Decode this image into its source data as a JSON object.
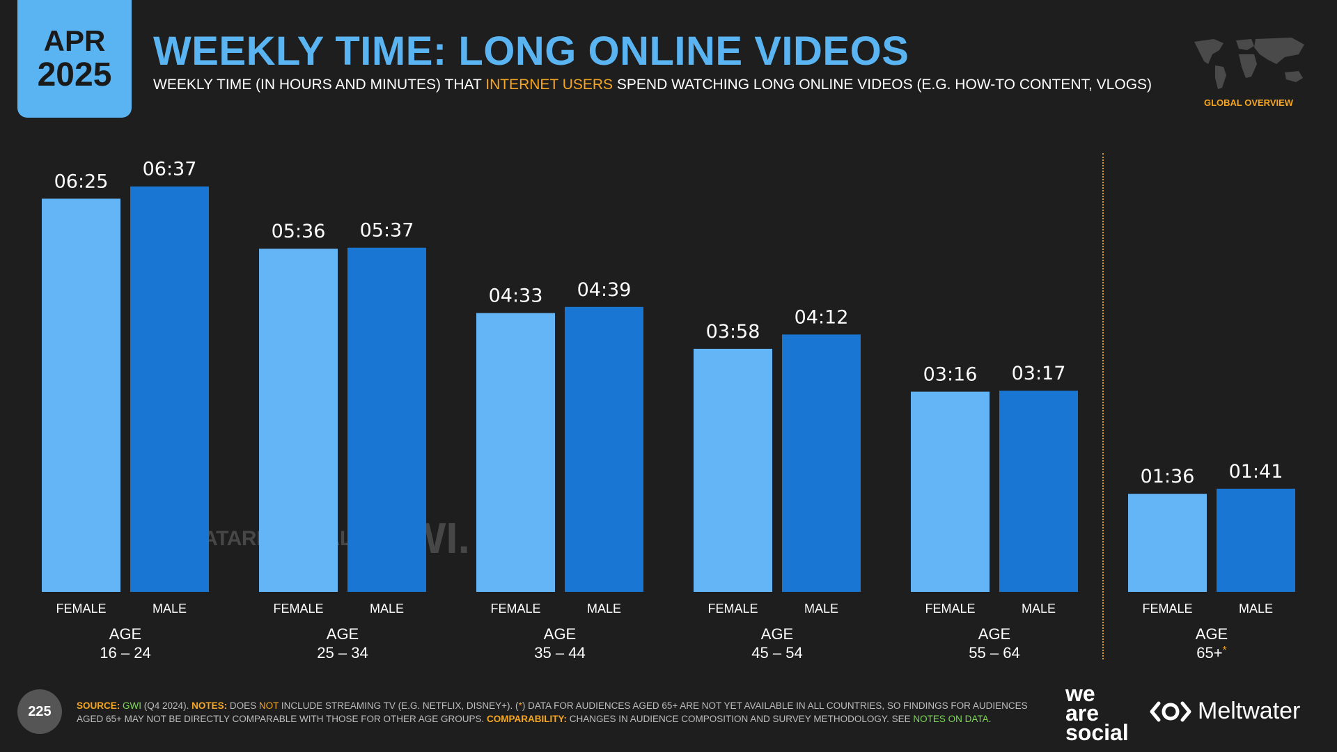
{
  "header": {
    "badge_month": "APR",
    "badge_year": "2025",
    "title": "WEEKLY TIME: LONG ONLINE VIDEOS",
    "subtitle_before": "WEEKLY TIME (IN HOURS AND MINUTES) THAT ",
    "subtitle_highlight": "INTERNET USERS",
    "subtitle_after": " SPEND WATCHING LONG ONLINE VIDEOS (E.G. HOW-TO CONTENT, VLOGS)",
    "global_overview": "GLOBAL OVERVIEW"
  },
  "watermark": {
    "datareportal": "DATAREPORTAL",
    "gwi": "GWI."
  },
  "colors": {
    "female": "#64b5f6",
    "male": "#1976d2",
    "accent": "#f5a623",
    "title": "#5ab4f2"
  },
  "chart_data": {
    "type": "bar",
    "unit": "hh:mm per week",
    "series": [
      {
        "name": "FEMALE",
        "labels": [
          "06:25",
          "05:36",
          "04:33",
          "03:58",
          "03:16",
          "01:36"
        ]
      },
      {
        "name": "MALE",
        "labels": [
          "06:37",
          "05:37",
          "04:39",
          "04:12",
          "03:17",
          "01:41"
        ]
      }
    ],
    "groups": [
      {
        "top": "AGE",
        "bottom": "16 – 24",
        "star": ""
      },
      {
        "top": "AGE",
        "bottom": "25 – 34",
        "star": ""
      },
      {
        "top": "AGE",
        "bottom": "35 – 44",
        "star": ""
      },
      {
        "top": "AGE",
        "bottom": "45 – 54",
        "star": ""
      },
      {
        "top": "AGE",
        "bottom": "55 – 64",
        "star": ""
      },
      {
        "top": "AGE",
        "bottom": "65+",
        "star": "*"
      }
    ],
    "ylim": [
      0,
      7.5
    ]
  },
  "footer": {
    "page_number": "225",
    "source_label": "SOURCE:",
    "source_name": "GWI",
    "source_period": " (Q4 2024). ",
    "notes_label": "NOTES:",
    "notes_1": " DOES ",
    "notes_not": "NOT",
    "notes_2": " INCLUDE STREAMING TV (E.G. NETFLIX, DISNEY+). (",
    "notes_star": "*",
    "notes_3": ") DATA FOR AUDIENCES AGED 65+ ARE NOT YET AVAILABLE IN ALL COUNTRIES, SO FINDINGS FOR AUDIENCES AGED 65+ MAY NOT BE DIRECTLY COMPARABLE WITH THOSE FOR OTHER AGE GROUPS. ",
    "comparability_label": "COMPARABILITY:",
    "comparability_text": " CHANGES IN AUDIENCE COMPOSITION AND SURVEY METHODOLOGY. SEE ",
    "notes_on_data": "NOTES ON DATA",
    "end": "."
  },
  "logos": {
    "was_1": "we",
    "was_2": "are",
    "was_3": "social",
    "meltwater": "Meltwater"
  }
}
